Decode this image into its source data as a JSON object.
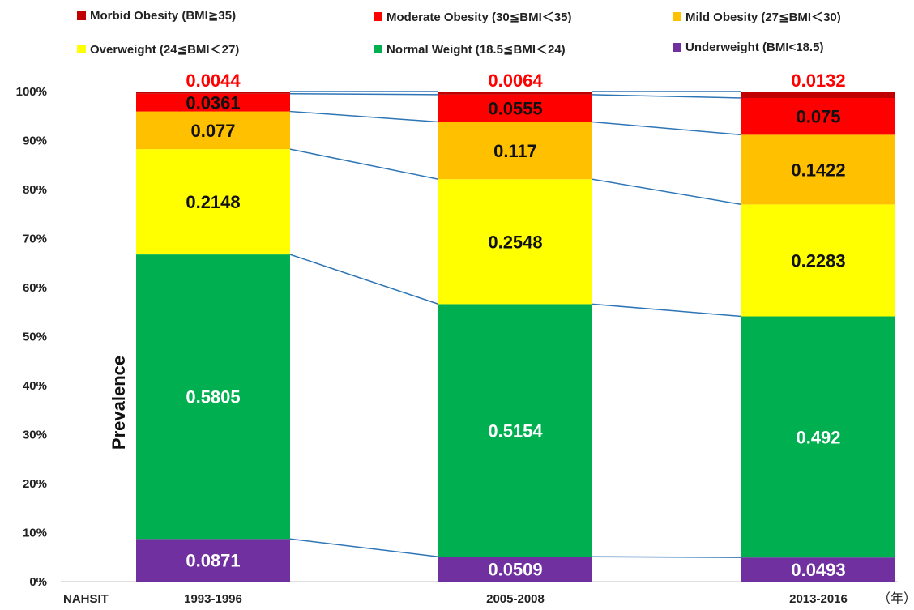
{
  "chart_data": {
    "type": "bar",
    "stacked": true,
    "normalized": true,
    "ylabel": "Prevalence",
    "ylim": [
      0,
      1
    ],
    "yticks": [
      "0%",
      "10%",
      "20%",
      "30%",
      "40%",
      "50%",
      "60%",
      "70%",
      "80%",
      "90%",
      "100%"
    ],
    "x_prefix_label": "NAHSIT",
    "x_unit_label": "（年）",
    "categories": [
      "1993-1996",
      "2005-2008",
      "2013-2016"
    ],
    "connector_lines": true,
    "series": [
      {
        "name": "Underweight (BMI<18.5)",
        "color": "#7030a0",
        "values": [
          0.0871,
          0.0509,
          0.0493
        ],
        "labels": [
          "0.0871",
          "0.0509",
          "0.0493"
        ],
        "label_color": "#ffffff"
      },
      {
        "name": "Normal Weight (18.5≦BMI＜24)",
        "color": "#00b050",
        "values": [
          0.5805,
          0.5154,
          0.492
        ],
        "labels": [
          "0.5805",
          "0.5154",
          "0.492"
        ],
        "label_color": "#ffffff"
      },
      {
        "name": "Overweight (24≦BMI＜27)",
        "color": "#ffff00",
        "values": [
          0.2148,
          0.2548,
          0.2283
        ],
        "labels": [
          "0.2148",
          "0.2548",
          "0.2283"
        ],
        "label_color": "#111111"
      },
      {
        "name": "Mild Obesity  (27≦BMI＜30)",
        "color": "#ffc000",
        "values": [
          0.077,
          0.117,
          0.1422
        ],
        "labels": [
          "0.077",
          "0.117",
          "0.1422"
        ],
        "label_color": "#111111"
      },
      {
        "name": "Moderate Obesity  (30≦BMI＜35)",
        "color": "#ff0000",
        "values": [
          0.0361,
          0.0555,
          0.075
        ],
        "labels": [
          "0.0361",
          "0.0555",
          "0.075"
        ],
        "label_color": "#111111"
      },
      {
        "name": "Morbid Obesity (BMI≧35)",
        "color": "#c00000",
        "values": [
          0.0044,
          0.0064,
          0.0132
        ],
        "labels": [
          "0.0044",
          "0.0064",
          "0.0132"
        ],
        "label_color": "#ff0000"
      }
    ],
    "legend_order": [
      5,
      4,
      3,
      2,
      1,
      0
    ],
    "legend_position": "top"
  }
}
